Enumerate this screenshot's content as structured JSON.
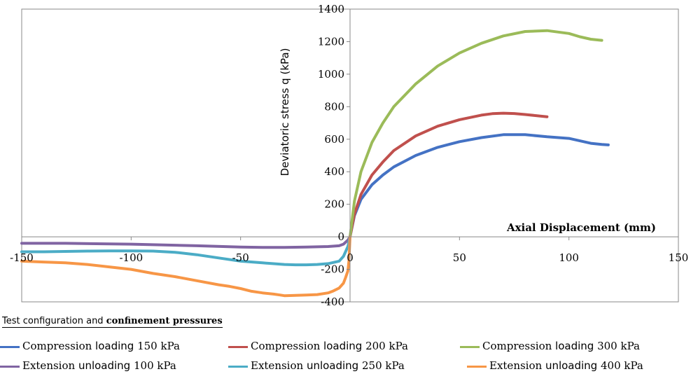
{
  "chart_data": {
    "type": "line",
    "xlabel": "Axial Displacement  (mm)",
    "ylabel": "Deviatoric stress q (kPa)",
    "xlim": [
      -150,
      150
    ],
    "ylim": [
      -400,
      1400
    ],
    "xticks": [
      -150,
      -100,
      -50,
      0,
      50,
      100,
      150
    ],
    "yticks": [
      -400,
      -200,
      0,
      200,
      400,
      600,
      800,
      1000,
      1200,
      1400
    ],
    "grid": false,
    "legend_title_part1": "Test configuration and ",
    "legend_title_part2": "confinement pressures",
    "legend_position": "bottom",
    "series": [
      {
        "label_main": "Compression ",
        "label_mode": "loading",
        "label_pressure": " 150 kPa",
        "color": "#4472c4",
        "x": [
          0,
          2,
          5,
          10,
          15,
          20,
          30,
          40,
          50,
          60,
          70,
          80,
          90,
          100,
          105,
          110,
          115,
          118
        ],
        "y": [
          0,
          130,
          230,
          320,
          380,
          430,
          500,
          550,
          585,
          610,
          628,
          628,
          615,
          605,
          590,
          575,
          568,
          565
        ]
      },
      {
        "label_main": "Compression ",
        "label_mode": "loading",
        "label_pressure": " 200 kPa",
        "color": "#c0504d",
        "x": [
          0,
          2,
          5,
          10,
          15,
          20,
          30,
          40,
          50,
          60,
          65,
          70,
          75,
          80,
          85,
          90
        ],
        "y": [
          0,
          140,
          260,
          380,
          460,
          530,
          620,
          680,
          720,
          748,
          757,
          760,
          758,
          752,
          745,
          738
        ]
      },
      {
        "label_main": "Compression ",
        "label_mode": "loading",
        "label_pressure": " 300 kPa",
        "color": "#9bbb59",
        "x": [
          0,
          2,
          5,
          10,
          15,
          20,
          30,
          40,
          50,
          60,
          70,
          80,
          90,
          100,
          105,
          110,
          115
        ],
        "y": [
          0,
          220,
          400,
          580,
          700,
          800,
          940,
          1050,
          1130,
          1190,
          1235,
          1262,
          1268,
          1250,
          1230,
          1215,
          1208
        ]
      },
      {
        "label_main": "Extension ",
        "label_mode": "unloading",
        "label_pressure": " 100 kPa",
        "color": "#8064a2",
        "x": [
          0,
          -1,
          -3,
          -5,
          -10,
          -20,
          -30,
          -40,
          -50,
          -70,
          -100,
          -130,
          -150
        ],
        "y": [
          0,
          -20,
          -45,
          -55,
          -60,
          -63,
          -65,
          -65,
          -63,
          -55,
          -45,
          -40,
          -40
        ]
      },
      {
        "label_main": "Extension ",
        "label_mode": "unloading",
        "label_pressure": " 250 kPa",
        "color": "#4bacc6",
        "x": [
          0,
          -1,
          -3,
          -5,
          -10,
          -15,
          -20,
          -25,
          -30,
          -40,
          -50,
          -60,
          -70,
          -80,
          -90,
          -100,
          -110,
          -120,
          -130,
          -140,
          -150
        ],
        "y": [
          0,
          -60,
          -120,
          -150,
          -165,
          -170,
          -172,
          -172,
          -170,
          -160,
          -150,
          -130,
          -110,
          -95,
          -88,
          -87,
          -87,
          -88,
          -90,
          -92,
          -92
        ]
      },
      {
        "label_main": "Extension ",
        "label_mode": "unloading",
        "label_pressure": " 400 kPa",
        "color": "#f79646",
        "x": [
          0,
          -0.5,
          -1,
          -2,
          -3,
          -5,
          -8,
          -10,
          -15,
          -20,
          -25,
          -30,
          -32,
          -35,
          -40,
          -45,
          -50,
          -55,
          -60,
          -70,
          -80,
          -90,
          -100,
          -110,
          -120,
          -130,
          -140,
          -150
        ],
        "y": [
          0,
          -150,
          -210,
          -250,
          -285,
          -315,
          -335,
          -345,
          -355,
          -358,
          -360,
          -362,
          -358,
          -352,
          -345,
          -335,
          -318,
          -305,
          -295,
          -270,
          -245,
          -225,
          -200,
          -185,
          -170,
          -160,
          -155,
          -150
        ]
      }
    ]
  }
}
